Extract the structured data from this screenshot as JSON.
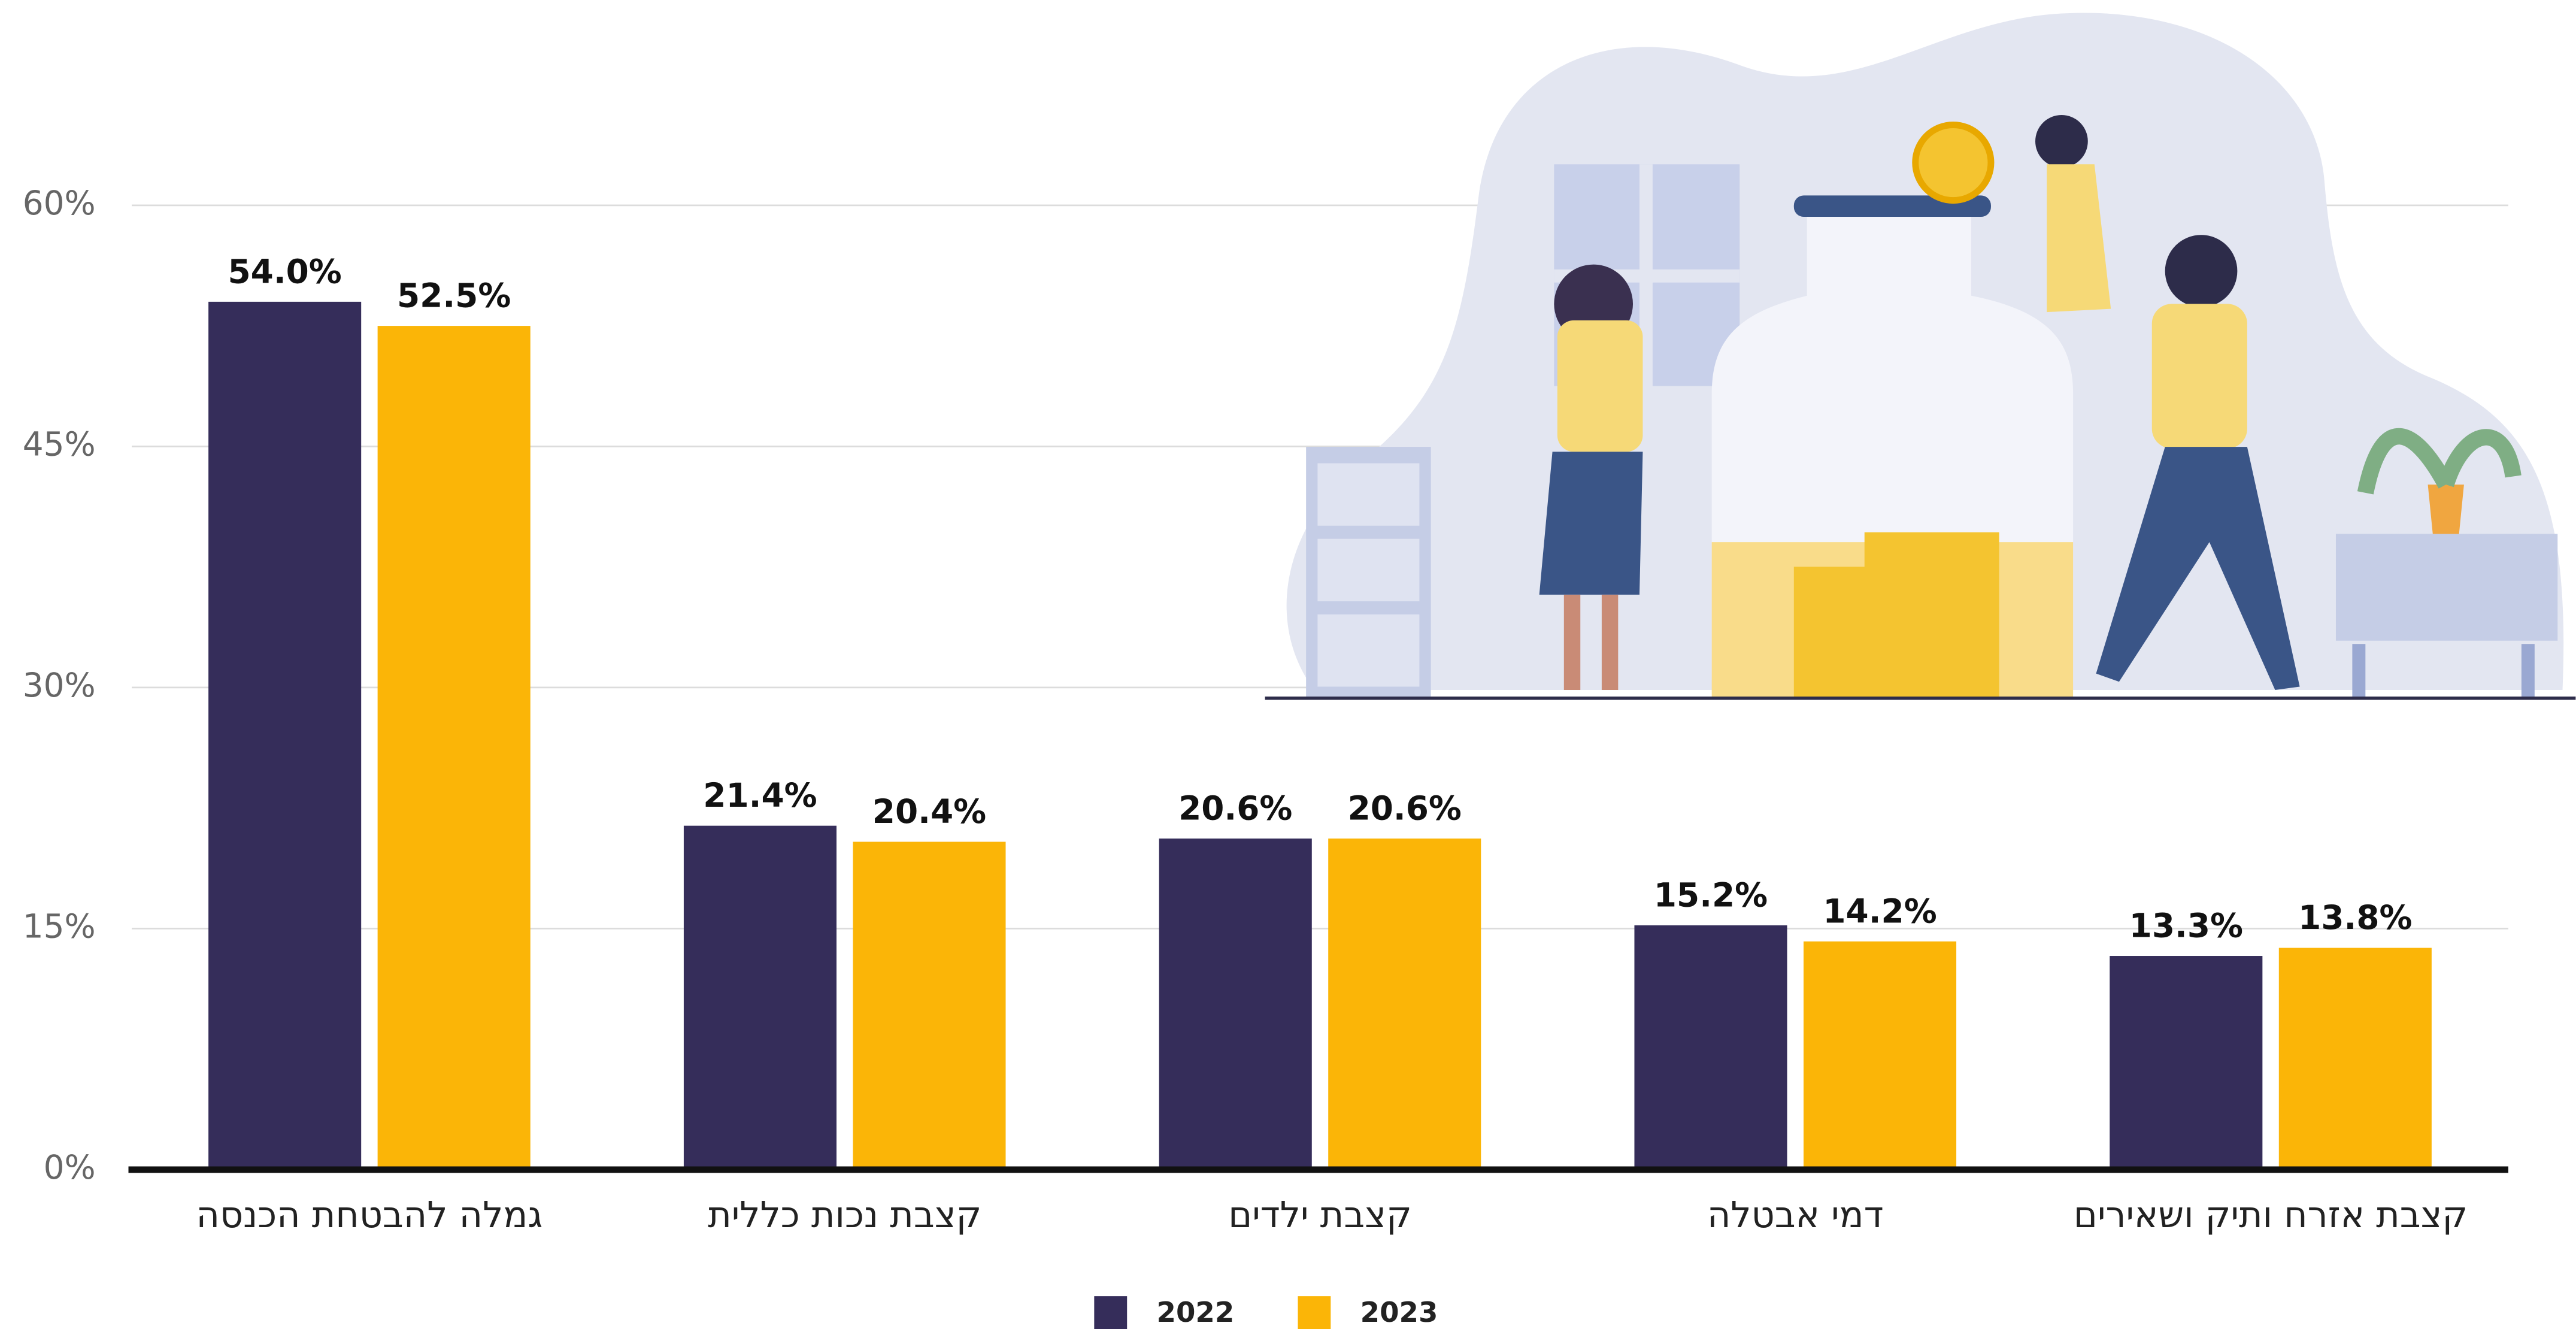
{
  "chart_data": {
    "type": "bar",
    "categories": [
      "גמלה להבטחת הכנסה",
      "קצבת נכות כללית",
      "קצבת ילדים",
      "דמי אבטלה",
      "קצבת אזרח ותיק ושאירים"
    ],
    "series": [
      {
        "name": "2022",
        "color": "#352d5a",
        "values": [
          54.0,
          21.4,
          20.6,
          15.2,
          13.3
        ],
        "value_labels": [
          "54.0%",
          "21.4%",
          "20.6%",
          "15.2%",
          "13.3%"
        ]
      },
      {
        "name": "2023",
        "color": "#fbb507",
        "values": [
          52.5,
          20.4,
          20.6,
          14.2,
          13.8
        ],
        "value_labels": [
          "52.5%",
          "20.4%",
          "20.6%",
          "14.2%",
          "13.8%"
        ]
      }
    ],
    "ylim": [
      0,
      60
    ],
    "yticks": [
      {
        "value": 0,
        "label": "0%"
      },
      {
        "value": 15,
        "label": "15%"
      },
      {
        "value": 30,
        "label": "30%"
      },
      {
        "value": 45,
        "label": "45%"
      },
      {
        "value": 60,
        "label": "60%"
      }
    ],
    "grid": true,
    "legend": "bottom"
  }
}
